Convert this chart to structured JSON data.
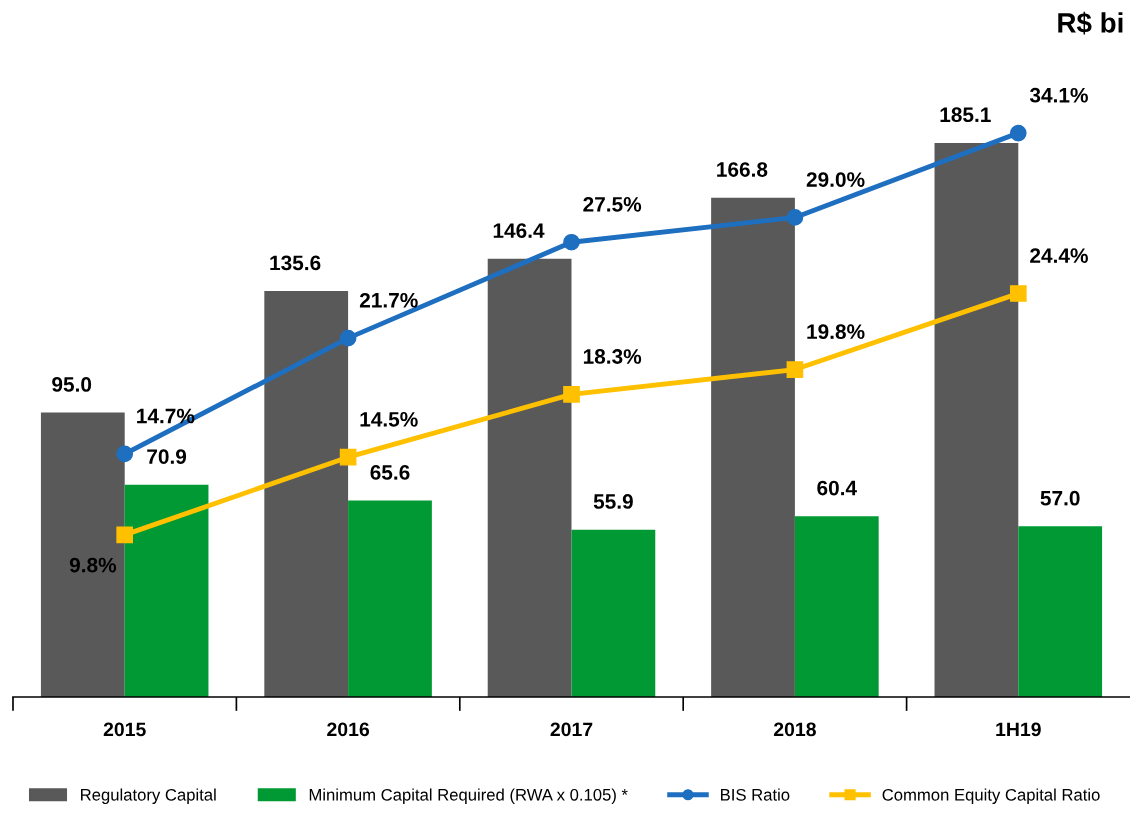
{
  "chart_data": {
    "type": "bar",
    "categories": [
      "2015",
      "2016",
      "2017",
      "2018",
      "1H19"
    ],
    "series": [
      {
        "name": "Regulatory Capital",
        "color": "#595959",
        "values": [
          95.0,
          135.6,
          146.4,
          166.8,
          185.1
        ],
        "value_labels": [
          "95.0",
          "135.6",
          "146.4",
          "166.8",
          "185.1"
        ]
      },
      {
        "name": "Minimum Capital Required (RWA x 0.105) *",
        "color": "#009933",
        "values": [
          70.9,
          65.6,
          55.9,
          60.4,
          57.0
        ],
        "value_labels": [
          "70.9",
          "65.6",
          "55.9",
          "60.4",
          "57.0"
        ]
      },
      {
        "name": "BIS Ratio",
        "type": "line",
        "axis": "y2",
        "marker": "circle",
        "color": "#1f6fc0",
        "values": [
          14.7,
          21.7,
          27.5,
          29.0,
          34.1
        ],
        "value_labels": [
          "14.7%",
          "21.7%",
          "27.5%",
          "29.0%",
          "34.1%"
        ]
      },
      {
        "name": "Common Equity Capital Ratio",
        "type": "line",
        "axis": "y2",
        "marker": "square",
        "color": "#ffc000",
        "values": [
          9.8,
          14.5,
          18.3,
          19.8,
          24.4
        ],
        "value_labels": [
          "9.8%",
          "14.5%",
          "18.3%",
          "19.8%",
          "24.4%"
        ]
      }
    ],
    "annotations": [
      "R$ bi"
    ],
    "legend": "bottom",
    "grid": false
  }
}
